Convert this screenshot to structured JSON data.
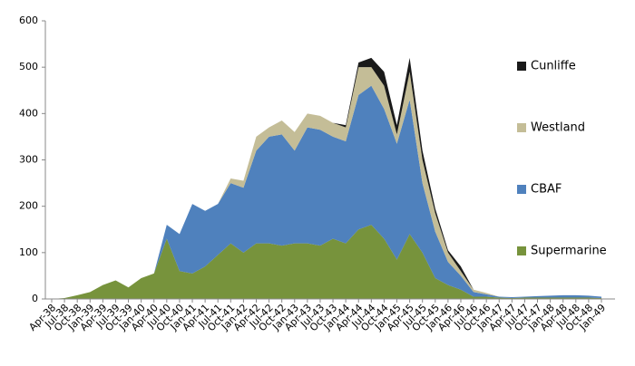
{
  "chart_data": {
    "type": "stacked_area",
    "categories": [
      "Apr-38",
      "Jul-38",
      "Oct-38",
      "Jan-39",
      "Apr-39",
      "Jul-39",
      "Oct-39",
      "Jan-40",
      "Apr-40",
      "Jul-40",
      "Oct-40",
      "Jan-41",
      "Apr-41",
      "Jul-41",
      "Oct-41",
      "Jan-42",
      "Apr-42",
      "Jul-42",
      "Oct-42",
      "Jan-43",
      "Apr-43",
      "Jul-43",
      "Oct-43",
      "Jan-44",
      "Apr-44",
      "Jul-44",
      "Oct-44",
      "Jan-45",
      "Apr-45",
      "Jul-45",
      "Oct-45",
      "Jan-46",
      "Apr-46",
      "Jul-46",
      "Oct-46",
      "Jan-47",
      "Apr-47",
      "Jul-47",
      "Oct-47",
      "Jan-48",
      "Apr-48",
      "Jul-48",
      "Oct-48",
      "Jan-49"
    ],
    "series": [
      {
        "name": "Supermarine",
        "color": "#77933c",
        "values": [
          0,
          2,
          8,
          15,
          30,
          40,
          25,
          45,
          55,
          130,
          60,
          55,
          70,
          95,
          120,
          100,
          120,
          120,
          115,
          120,
          120,
          115,
          130,
          120,
          150,
          160,
          130,
          85,
          140,
          100,
          45,
          30,
          20,
          5,
          5,
          3,
          2,
          3,
          3,
          3,
          3,
          3,
          3,
          2
        ]
      },
      {
        "name": "CBAF",
        "color": "#4f81bd",
        "values": [
          0,
          0,
          0,
          0,
          0,
          0,
          0,
          0,
          0,
          30,
          80,
          150,
          120,
          110,
          130,
          140,
          200,
          230,
          240,
          200,
          250,
          250,
          220,
          220,
          290,
          300,
          280,
          250,
          290,
          150,
          100,
          50,
          30,
          10,
          5,
          2,
          2,
          2,
          3,
          4,
          5,
          5,
          4,
          3
        ]
      },
      {
        "name": "Westland",
        "color": "#c4bd97",
        "values": [
          0,
          0,
          0,
          0,
          0,
          0,
          0,
          0,
          0,
          0,
          0,
          0,
          0,
          0,
          10,
          15,
          30,
          20,
          30,
          40,
          30,
          30,
          30,
          30,
          60,
          40,
          50,
          20,
          60,
          50,
          40,
          20,
          10,
          5,
          3,
          0,
          0,
          0,
          0,
          0,
          0,
          0,
          0,
          0
        ]
      },
      {
        "name": "Cunliffe",
        "color": "#1a1a1a",
        "values": [
          0,
          0,
          0,
          0,
          0,
          0,
          0,
          0,
          0,
          0,
          0,
          0,
          0,
          0,
          0,
          0,
          0,
          0,
          0,
          0,
          0,
          0,
          0,
          5,
          10,
          20,
          30,
          20,
          30,
          20,
          10,
          5,
          10,
          0,
          0,
          0,
          0,
          0,
          0,
          0,
          0,
          0,
          0,
          0
        ]
      }
    ],
    "ylim": [
      0,
      600
    ],
    "yticks": [
      0,
      100,
      200,
      300,
      400,
      500,
      600
    ],
    "grid": false,
    "legend": "right"
  }
}
